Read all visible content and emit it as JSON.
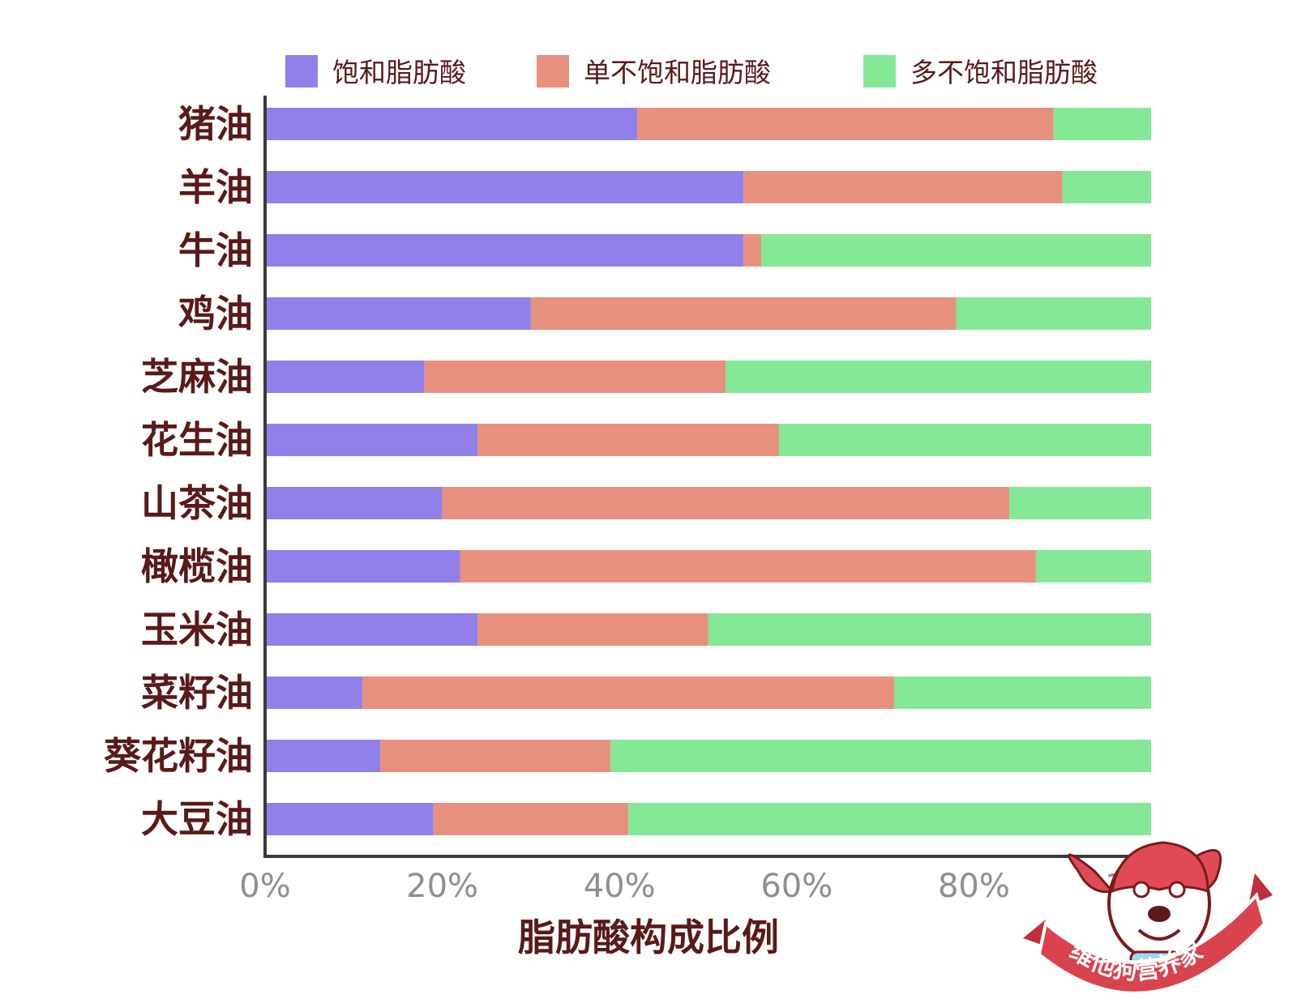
{
  "chart_data": {
    "type": "bar",
    "orientation": "horizontal",
    "stacked": true,
    "xlabel": "脂肪酸构成比例",
    "ylabel": "",
    "xlim": [
      0,
      100
    ],
    "x_ticks": [
      "0%",
      "20%",
      "40%",
      "60%",
      "80%",
      "100%"
    ],
    "legend_position": "top",
    "grid": false,
    "categories": [
      "猪油",
      "羊油",
      "牛油",
      "鸡油",
      "芝麻油",
      "花生油",
      "山茶油",
      "橄榄油",
      "玉米油",
      "菜籽油",
      "葵花籽油",
      "大豆油"
    ],
    "series": [
      {
        "name": "饱和脂肪酸",
        "color": "#9080ea",
        "values": [
          42,
          54,
          54,
          30,
          18,
          24,
          20,
          22,
          24,
          11,
          13,
          19
        ]
      },
      {
        "name": "单不饱和脂肪酸",
        "color": "#e8907f",
        "values": [
          47,
          36,
          2,
          48,
          34,
          34,
          64,
          65,
          26,
          60,
          26,
          22
        ]
      },
      {
        "name": "多不饱和脂肪酸",
        "color": "#85e897",
        "values": [
          11,
          10,
          44,
          22,
          48,
          42,
          16,
          13,
          50,
          29,
          61,
          59
        ]
      }
    ]
  },
  "watermark": {
    "text": "维他狗营养家",
    "icon": "dog-mascot-icon"
  }
}
